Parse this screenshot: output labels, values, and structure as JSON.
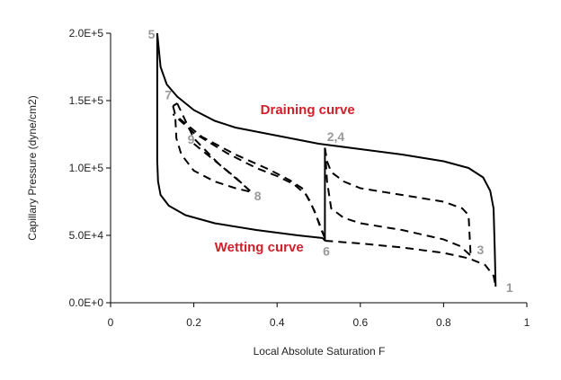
{
  "chart_data": {
    "type": "line",
    "title": "",
    "xlabel": "Local Absolute Saturation F",
    "ylabel": "Capillary Pressure (dyne/cm2)",
    "xlim": [
      0,
      1
    ],
    "ylim": [
      0,
      200000
    ],
    "x_ticks": [
      0,
      0.2,
      0.4,
      0.6,
      0.8,
      1
    ],
    "x_tick_labels": [
      "0",
      "0.2",
      "0.4",
      "0.6",
      "0.8",
      "1"
    ],
    "y_ticks": [
      0,
      50000,
      100000,
      150000,
      200000
    ],
    "y_tick_labels": [
      "0.0E+0",
      "5.0E+4",
      "1.0E+5",
      "1.5E+5",
      "2.0E+5"
    ],
    "grid": false,
    "colors": {
      "solid": "#000000",
      "dashed": "#000000",
      "curve_label": "#d0202a",
      "point_label": "#999999"
    },
    "series": [
      {
        "style": "solid",
        "points": [
          [
            0.112,
            200000
          ],
          [
            0.12,
            175000
          ],
          [
            0.135,
            162000
          ],
          [
            0.16,
            153000
          ],
          [
            0.2,
            143000
          ],
          [
            0.25,
            135000
          ],
          [
            0.3,
            130000
          ],
          [
            0.4,
            124000
          ],
          [
            0.5,
            118000
          ],
          [
            0.6,
            114000
          ],
          [
            0.7,
            110000
          ],
          [
            0.8,
            105000
          ],
          [
            0.86,
            100000
          ],
          [
            0.895,
            93000
          ],
          [
            0.912,
            83000
          ],
          [
            0.92,
            70000
          ],
          [
            0.923,
            40000
          ],
          [
            0.925,
            12000
          ]
        ]
      },
      {
        "style": "solid",
        "points": [
          [
            0.112,
            200000
          ],
          [
            0.112,
            175000
          ],
          [
            0.112,
            105000
          ],
          [
            0.114,
            90000
          ],
          [
            0.12,
            80000
          ],
          [
            0.14,
            72000
          ],
          [
            0.18,
            65000
          ],
          [
            0.25,
            59000
          ],
          [
            0.35,
            54000
          ],
          [
            0.45,
            50000
          ],
          [
            0.51,
            48000
          ]
        ]
      },
      {
        "style": "solid",
        "points": [
          [
            0.51,
            48000
          ],
          [
            0.515,
            46000
          ]
        ]
      },
      {
        "style": "solid",
        "points": [
          [
            0.515,
            115000
          ],
          [
            0.515,
            46000
          ]
        ]
      },
      {
        "style": "dashed",
        "points": [
          [
            0.515,
            46000
          ],
          [
            0.6,
            44000
          ],
          [
            0.7,
            41000
          ],
          [
            0.8,
            37000
          ],
          [
            0.86,
            33000
          ],
          [
            0.9,
            28000
          ],
          [
            0.92,
            20000
          ],
          [
            0.925,
            12000
          ]
        ]
      },
      {
        "style": "dashed",
        "points": [
          [
            0.515,
            115000
          ],
          [
            0.52,
            105000
          ],
          [
            0.53,
            97000
          ],
          [
            0.56,
            90000
          ],
          [
            0.6,
            85000
          ],
          [
            0.7,
            80000
          ],
          [
            0.8,
            75000
          ],
          [
            0.845,
            70000
          ],
          [
            0.86,
            65000
          ],
          [
            0.865,
            35000
          ]
        ]
      },
      {
        "style": "dashed",
        "points": [
          [
            0.515,
            115000
          ],
          [
            0.52,
            90000
          ],
          [
            0.53,
            70000
          ],
          [
            0.56,
            63000
          ],
          [
            0.6,
            59000
          ],
          [
            0.7,
            54000
          ],
          [
            0.8,
            47000
          ],
          [
            0.84,
            42000
          ],
          [
            0.865,
            35000
          ]
        ]
      },
      {
        "style": "dashed",
        "points": [
          [
            0.515,
            48000
          ],
          [
            0.5,
            60000
          ],
          [
            0.48,
            75000
          ],
          [
            0.46,
            85000
          ],
          [
            0.43,
            91000
          ],
          [
            0.38,
            99000
          ],
          [
            0.3,
            110000
          ],
          [
            0.22,
            123000
          ],
          [
            0.18,
            133000
          ],
          [
            0.16,
            138000
          ]
        ]
      },
      {
        "style": "dashed",
        "points": [
          [
            0.515,
            48000
          ],
          [
            0.505,
            55000
          ],
          [
            0.49,
            68000
          ],
          [
            0.47,
            80000
          ],
          [
            0.44,
            88000
          ],
          [
            0.4,
            94000
          ],
          [
            0.35,
            100000
          ],
          [
            0.28,
            111000
          ],
          [
            0.2,
            126000
          ],
          [
            0.15,
            140000
          ]
        ]
      },
      {
        "style": "dashed",
        "points": [
          [
            0.15,
            146000
          ],
          [
            0.155,
            140000
          ],
          [
            0.158,
            122000
          ],
          [
            0.17,
            110000
          ],
          [
            0.2,
            98000
          ],
          [
            0.25,
            90000
          ],
          [
            0.3,
            85000
          ],
          [
            0.34,
            82000
          ]
        ]
      },
      {
        "style": "dashed",
        "points": [
          [
            0.15,
            146000
          ],
          [
            0.16,
            148000
          ]
        ]
      },
      {
        "style": "dashed",
        "points": [
          [
            0.16,
            148000
          ],
          [
            0.2,
            122000
          ],
          [
            0.26,
            103000
          ],
          [
            0.31,
            90000
          ],
          [
            0.335,
            83000
          ]
        ]
      },
      {
        "style": "dashed",
        "points": [
          [
            0.2,
            118000
          ],
          [
            0.24,
            108000
          ],
          [
            0.3,
            93000
          ],
          [
            0.335,
            83000
          ]
        ]
      }
    ],
    "annotations": [
      {
        "text": "Draining curve",
        "x": 0.36,
        "y": 140000,
        "kind": "curve"
      },
      {
        "text": "Wetting curve",
        "x": 0.25,
        "y": 38000,
        "kind": "curve"
      },
      {
        "text": "5",
        "x": 0.09,
        "y": 196000,
        "kind": "point"
      },
      {
        "text": "7",
        "x": 0.13,
        "y": 151000,
        "kind": "point"
      },
      {
        "text": "9",
        "x": 0.185,
        "y": 118000,
        "kind": "point"
      },
      {
        "text": "8",
        "x": 0.345,
        "y": 76000,
        "kind": "point"
      },
      {
        "text": "2,4",
        "x": 0.52,
        "y": 120000,
        "kind": "point"
      },
      {
        "text": "6",
        "x": 0.51,
        "y": 35000,
        "kind": "point"
      },
      {
        "text": "3",
        "x": 0.88,
        "y": 36000,
        "kind": "point"
      },
      {
        "text": "1",
        "x": 0.95,
        "y": 8000,
        "kind": "point"
      }
    ]
  }
}
